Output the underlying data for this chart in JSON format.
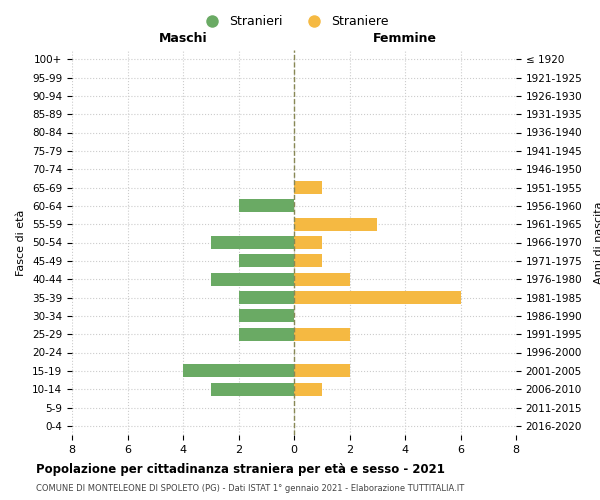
{
  "age_groups": [
    "0-4",
    "5-9",
    "10-14",
    "15-19",
    "20-24",
    "25-29",
    "30-34",
    "35-39",
    "40-44",
    "45-49",
    "50-54",
    "55-59",
    "60-64",
    "65-69",
    "70-74",
    "75-79",
    "80-84",
    "85-89",
    "90-94",
    "95-99",
    "100+"
  ],
  "birth_years": [
    "2016-2020",
    "2011-2015",
    "2006-2010",
    "2001-2005",
    "1996-2000",
    "1991-1995",
    "1986-1990",
    "1981-1985",
    "1976-1980",
    "1971-1975",
    "1966-1970",
    "1961-1965",
    "1956-1960",
    "1951-1955",
    "1946-1950",
    "1941-1945",
    "1936-1940",
    "1931-1935",
    "1926-1930",
    "1921-1925",
    "≤ 1920"
  ],
  "maschi": [
    0,
    0,
    3,
    4,
    0,
    2,
    2,
    2,
    3,
    2,
    3,
    0,
    2,
    0,
    0,
    0,
    0,
    0,
    0,
    0,
    0
  ],
  "femmine": [
    0,
    0,
    1,
    2,
    0,
    2,
    0,
    6,
    2,
    1,
    1,
    3,
    0,
    1,
    0,
    0,
    0,
    0,
    0,
    0,
    0
  ],
  "color_maschi": "#6aaa64",
  "color_femmine": "#f5b942",
  "title": "Popolazione per cittadinanza straniera per età e sesso - 2021",
  "subtitle": "COMUNE DI MONTELEONE DI SPOLETO (PG) - Dati ISTAT 1° gennaio 2021 - Elaborazione TUTTITALIA.IT",
  "xlabel_left": "Maschi",
  "xlabel_right": "Femmine",
  "ylabel_left": "Fasce di età",
  "ylabel_right": "Anni di nascita",
  "legend_maschi": "Stranieri",
  "legend_femmine": "Straniere",
  "xlim": 8,
  "background_color": "#ffffff",
  "grid_color": "#cccccc",
  "bar_height": 0.72
}
